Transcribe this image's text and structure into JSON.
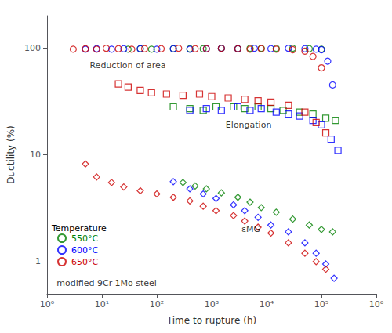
{
  "chart_data": {
    "type": "scatter",
    "xlabel": "Time to rupture (h)",
    "ylabel": "Ductility (%)",
    "log": true,
    "grid": false,
    "xlim": [
      1.0,
      1000000.0
    ],
    "ylim": [
      0.5,
      200.0
    ],
    "xticks": [
      {
        "value": 1,
        "label": "10⁰"
      },
      {
        "value": 10,
        "label": "10¹"
      },
      {
        "value": 100,
        "label": "10²"
      },
      {
        "value": 1000,
        "label": "10³"
      },
      {
        "value": 10000,
        "label": "10⁴"
      },
      {
        "value": 100000,
        "label": "10⁵"
      },
      {
        "value": 1000000,
        "label": "10⁶"
      }
    ],
    "yticks": [
      1,
      10,
      100
    ],
    "legend": "lower left",
    "legend_title": "Temperature",
    "series": [
      {
        "name": "550°C",
        "color": "#008000",
        "marker": "circle",
        "values": [
          [
            30,
            97
          ],
          [
            50,
            98
          ],
          [
            80,
            97
          ],
          [
            200,
            98
          ],
          [
            400,
            98
          ],
          [
            700,
            98
          ],
          [
            1500,
            99
          ],
          [
            3000,
            98
          ],
          [
            5000,
            99
          ],
          [
            8000,
            99
          ],
          [
            15000,
            99
          ],
          [
            30000,
            99
          ],
          [
            60000,
            98
          ],
          [
            100000,
            97
          ]
        ]
      },
      {
        "name": "600°C",
        "color": "#0000FF",
        "marker": "circle",
        "values": [
          [
            5,
            97
          ],
          [
            8,
            98
          ],
          [
            15,
            97
          ],
          [
            25,
            98
          ],
          [
            50,
            98
          ],
          [
            100,
            97
          ],
          [
            200,
            98
          ],
          [
            400,
            97
          ],
          [
            800,
            98
          ],
          [
            1500,
            99
          ],
          [
            3000,
            98
          ],
          [
            6000,
            99
          ],
          [
            12000,
            98
          ],
          [
            25000,
            99
          ],
          [
            50000,
            98
          ],
          [
            80000,
            97
          ],
          [
            100000,
            96
          ],
          [
            130000,
            75
          ],
          [
            160000,
            45
          ]
        ]
      },
      {
        "name": "650°C",
        "color": "#CC0000",
        "marker": "circle",
        "values": [
          [
            3,
            97
          ],
          [
            5,
            98
          ],
          [
            8,
            97
          ],
          [
            12,
            99
          ],
          [
            20,
            98
          ],
          [
            35,
            97
          ],
          [
            60,
            98
          ],
          [
            120,
            98
          ],
          [
            250,
            99
          ],
          [
            500,
            98
          ],
          [
            800,
            98
          ],
          [
            1500,
            99
          ],
          [
            3000,
            98
          ],
          [
            5000,
            97
          ],
          [
            8000,
            98
          ],
          [
            15000,
            97
          ],
          [
            30000,
            96
          ],
          [
            50000,
            93
          ],
          [
            70000,
            83
          ],
          [
            100000,
            65
          ]
        ]
      },
      {
        "name": "550°C",
        "color": "#008000",
        "marker": "square",
        "values": [
          [
            200,
            28
          ],
          [
            400,
            27
          ],
          [
            700,
            26
          ],
          [
            1200,
            28
          ],
          [
            2500,
            28
          ],
          [
            4000,
            27
          ],
          [
            7000,
            28
          ],
          [
            12000,
            27
          ],
          [
            20000,
            26
          ],
          [
            40000,
            25
          ],
          [
            70000,
            24
          ],
          [
            120000,
            22
          ],
          [
            180000,
            21
          ]
        ]
      },
      {
        "name": "600°C",
        "color": "#0000FF",
        "marker": "square",
        "values": [
          [
            400,
            26
          ],
          [
            800,
            27
          ],
          [
            1500,
            26
          ],
          [
            3000,
            28
          ],
          [
            5000,
            26
          ],
          [
            8000,
            27
          ],
          [
            15000,
            25
          ],
          [
            25000,
            24
          ],
          [
            40000,
            23
          ],
          [
            70000,
            21
          ],
          [
            100000,
            19
          ],
          [
            150000,
            14
          ],
          [
            200000,
            11
          ]
        ]
      },
      {
        "name": "650°C",
        "color": "#CC0000",
        "marker": "square",
        "values": [
          [
            20,
            46
          ],
          [
            30,
            43
          ],
          [
            50,
            40
          ],
          [
            80,
            38
          ],
          [
            150,
            37
          ],
          [
            300,
            36
          ],
          [
            600,
            37
          ],
          [
            1000,
            35
          ],
          [
            2000,
            34
          ],
          [
            4000,
            33
          ],
          [
            7000,
            32
          ],
          [
            12000,
            31
          ],
          [
            25000,
            29
          ],
          [
            50000,
            25
          ],
          [
            80000,
            20
          ],
          [
            120000,
            16
          ]
        ]
      },
      {
        "name": "550°C",
        "color": "#008000",
        "marker": "diamond",
        "values": [
          [
            300,
            5.5
          ],
          [
            500,
            5.1
          ],
          [
            800,
            4.8
          ],
          [
            1500,
            4.4
          ],
          [
            3000,
            4.0
          ],
          [
            5000,
            3.6
          ],
          [
            8000,
            3.2
          ],
          [
            15000,
            2.9
          ],
          [
            30000,
            2.5
          ],
          [
            60000,
            2.2
          ],
          [
            100000,
            2.0
          ],
          [
            160000,
            1.9
          ]
        ]
      },
      {
        "name": "600°C",
        "color": "#0000FF",
        "marker": "diamond",
        "values": [
          [
            200,
            5.6
          ],
          [
            400,
            4.8
          ],
          [
            700,
            4.3
          ],
          [
            1200,
            3.9
          ],
          [
            2500,
            3.4
          ],
          [
            4000,
            3.0
          ],
          [
            7000,
            2.6
          ],
          [
            12000,
            2.2
          ],
          [
            25000,
            1.9
          ],
          [
            50000,
            1.5
          ],
          [
            80000,
            1.2
          ],
          [
            120000,
            0.95
          ],
          [
            170000,
            0.7
          ]
        ]
      },
      {
        "name": "650°C",
        "color": "#CC0000",
        "marker": "diamond",
        "values": [
          [
            5,
            8.2
          ],
          [
            8,
            6.2
          ],
          [
            15,
            5.5
          ],
          [
            25,
            5.0
          ],
          [
            50,
            4.6
          ],
          [
            100,
            4.3
          ],
          [
            200,
            4.0
          ],
          [
            400,
            3.7
          ],
          [
            700,
            3.3
          ],
          [
            1200,
            3.0
          ],
          [
            2500,
            2.7
          ],
          [
            4000,
            2.4
          ],
          [
            7000,
            2.1
          ],
          [
            12000,
            1.85
          ],
          [
            25000,
            1.5
          ],
          [
            50000,
            1.2
          ],
          [
            80000,
            1.0
          ],
          [
            120000,
            0.85
          ]
        ]
      }
    ],
    "annotations": [
      {
        "text": "Reduction of area",
        "x": 6.0,
        "y": 68.0
      },
      {
        "text": "Elongation",
        "x": 1800.0,
        "y": 19.0
      },
      {
        "text": "εMG",
        "x": 3500.0,
        "y": 2.0
      },
      {
        "text": "modified 9Cr-1Mo steel",
        "x": 1.5,
        "y": 0.63
      }
    ]
  }
}
